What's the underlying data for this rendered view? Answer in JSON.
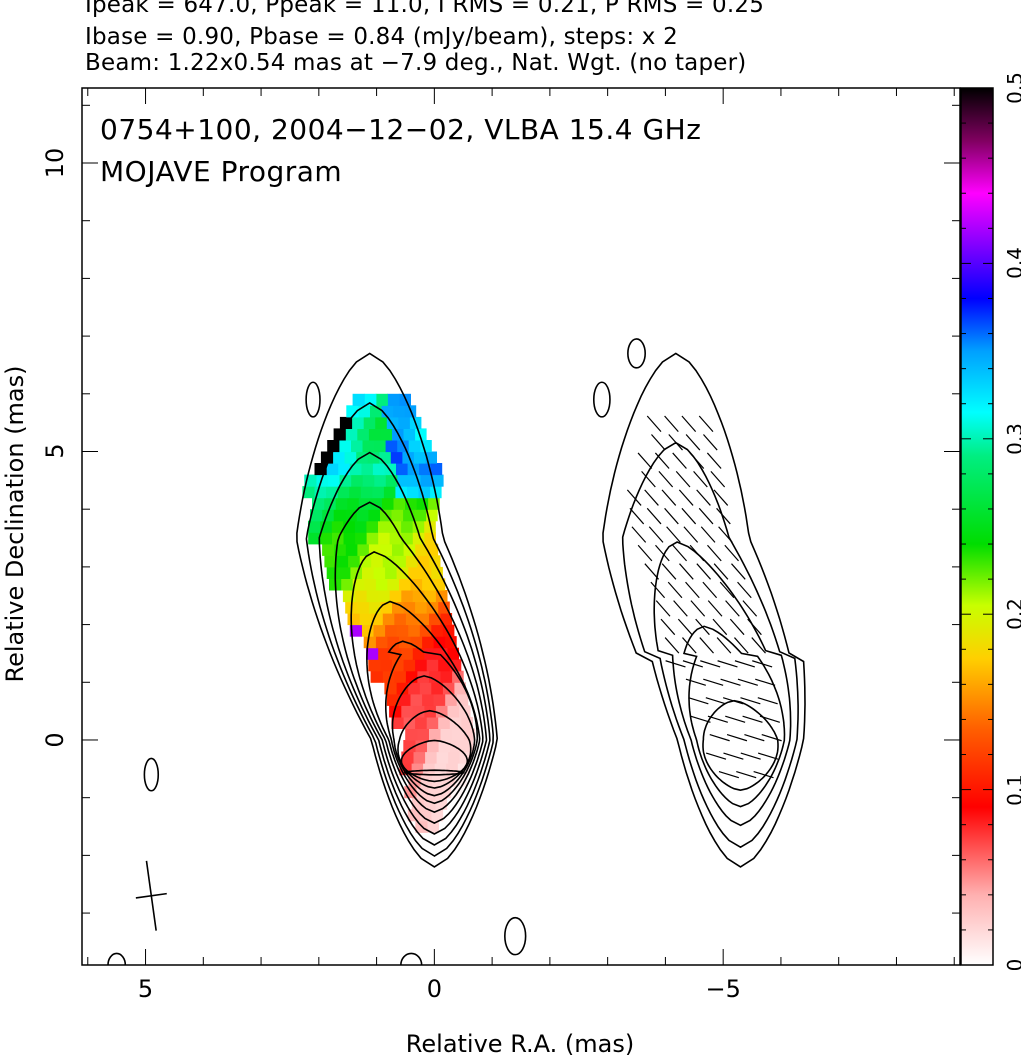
{
  "header": {
    "line1": "Ipeak = 647.0, Ppeak = 11.0, I RMS = 0.21, P RMS = 0.25",
    "line2": "Ibase = 0.90, Pbase = 0.84 (mJy/beam), steps: x 2",
    "line3": "Beam: 1.22x0.54 mas at −7.9 deg., Nat. Wgt. (no taper)"
  },
  "chart_data": {
    "type": "heatmap",
    "title": "0754+100, 2004−12−02, VLBA 15.4 GHz",
    "subtitle": "MOJAVE Program",
    "xlabel": "Relative R.A. (mas)",
    "ylabel": "Relative Declination (mas)",
    "xlim": [
      6.1,
      -9.1
    ],
    "ylim": [
      -3.9,
      11.3
    ],
    "x_reversed": true,
    "x_ticks": [
      {
        "value": 5,
        "label": "5"
      },
      {
        "value": 0,
        "label": "0"
      },
      {
        "value": -5,
        "label": "−5"
      }
    ],
    "y_ticks": [
      {
        "value": 0,
        "label": "0"
      },
      {
        "value": 5,
        "label": "5"
      },
      {
        "value": 10,
        "label": "10"
      }
    ],
    "colorbar": {
      "range": [
        0,
        0.5
      ],
      "ticks": [
        {
          "value": 0,
          "label": "0"
        },
        {
          "value": 0.1,
          "label": "0.1"
        },
        {
          "value": 0.2,
          "label": "0.2"
        },
        {
          "value": 0.3,
          "label": "0.3"
        },
        {
          "value": 0.4,
          "label": "0.4"
        },
        {
          "value": 0.5,
          "label": "0.5"
        }
      ]
    },
    "fractional_polarization_profile": [
      {
        "dec": -1.6,
        "value": 0.02
      },
      {
        "dec": -0.5,
        "value": 0.04
      },
      {
        "dec": 0.0,
        "value": 0.05
      },
      {
        "dec": 0.7,
        "value": 0.08
      },
      {
        "dec": 1.4,
        "value": 0.11
      },
      {
        "dec": 2.0,
        "value": 0.15
      },
      {
        "dec": 2.7,
        "value": 0.2
      },
      {
        "dec": 3.4,
        "value": 0.22
      },
      {
        "dec": 4.0,
        "value": 0.25
      },
      {
        "dec": 4.6,
        "value": 0.3
      },
      {
        "dec": 5.3,
        "value": 0.27
      },
      {
        "dec": 5.8,
        "value": 0.3
      }
    ],
    "intensity_peak": {
      "ra": 0.0,
      "dec": 0.1
    },
    "beam": {
      "major": 1.22,
      "minor": 0.54,
      "pa": -7.9,
      "center": {
        "ra": 4.9,
        "dec": -2.7
      }
    },
    "panel_offset_ra": -5.0
  },
  "colors": {
    "contour": "#000000",
    "background": "#ffffff",
    "colormap": [
      "#ffffff",
      "#ff0000",
      "#ff8c00",
      "#ffff00",
      "#00e000",
      "#00ffff",
      "#0000ff",
      "#ff00ff",
      "#000000"
    ]
  }
}
